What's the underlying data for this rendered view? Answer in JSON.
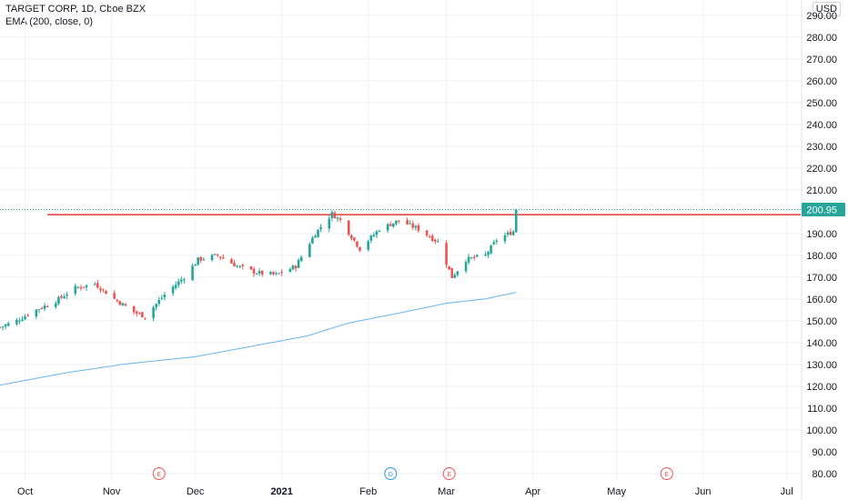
{
  "header": {
    "symbol_line": "TARGET CORP, 1D, Cboe BZX",
    "indicator_line": "EMA (200, close, 0)",
    "currency": "USD"
  },
  "colors": {
    "up": "#26a69a",
    "down": "#ef5350",
    "ema": "#64b5f6",
    "resistance": "#e53935",
    "grid": "#f0f3fa",
    "price_tag": "#26a69a"
  },
  "events": [
    {
      "date": "2020-11-18",
      "label": "E",
      "kind": "earnings"
    },
    {
      "date": "2021-02-09",
      "label": "D",
      "kind": "dividend"
    },
    {
      "date": "2021-03-02",
      "label": "E",
      "kind": "earnings"
    },
    {
      "date": "2021-05-19",
      "label": "E",
      "kind": "earnings"
    }
  ],
  "chart_data": {
    "type": "line",
    "title": "TARGET CORP, 1D, Cboe BZX",
    "subtitle": "EMA (200, close, 0)",
    "price_unit": "USD",
    "last_price_label": "200.95",
    "ylim": [
      77,
      297
    ],
    "xlim": [
      "2020-09-22",
      "2021-07-06"
    ],
    "y_ticks": [
      "80.00",
      "90.00",
      "100.00",
      "110.00",
      "120.00",
      "130.00",
      "140.00",
      "150.00",
      "160.00",
      "170.00",
      "180.00",
      "190.00",
      "200.00",
      "210.00",
      "220.00",
      "230.00",
      "240.00",
      "250.00",
      "260.00",
      "270.00",
      "280.00",
      "290.00"
    ],
    "x_ticks": [
      {
        "date": "2020-10-01",
        "label": "Oct"
      },
      {
        "date": "2020-11-01",
        "label": "Nov"
      },
      {
        "date": "2020-12-01",
        "label": "Dec"
      },
      {
        "date": "2021-01-01",
        "label": "2021",
        "bold": true
      },
      {
        "date": "2021-02-01",
        "label": "Feb"
      },
      {
        "date": "2021-03-01",
        "label": "Mar"
      },
      {
        "date": "2021-04-01",
        "label": "Apr"
      },
      {
        "date": "2021-05-01",
        "label": "May"
      },
      {
        "date": "2021-06-01",
        "label": "Jun"
      },
      {
        "date": "2021-07-01",
        "label": "Jul"
      }
    ],
    "resistance_level": {
      "y": 198.6,
      "from": "2020-10-09",
      "to": "2021-07-06"
    },
    "last_close": 200.95,
    "close_path": [
      [
        "2020-09-22",
        147
      ],
      [
        "2020-09-28",
        150
      ],
      [
        "2020-10-05",
        155
      ],
      [
        "2020-10-12",
        159
      ],
      [
        "2020-10-19",
        165
      ],
      [
        "2020-10-26",
        167
      ],
      [
        "2020-11-02",
        160
      ],
      [
        "2020-11-09",
        154
      ],
      [
        "2020-11-13",
        152
      ],
      [
        "2020-11-20",
        162
      ],
      [
        "2020-11-27",
        170
      ],
      [
        "2020-12-02",
        178
      ],
      [
        "2020-12-09",
        180
      ],
      [
        "2020-12-16",
        175
      ],
      [
        "2020-12-23",
        172
      ],
      [
        "2020-12-30",
        171
      ],
      [
        "2021-01-06",
        175
      ],
      [
        "2021-01-13",
        190
      ],
      [
        "2021-01-19",
        199
      ],
      [
        "2021-01-22",
        196
      ],
      [
        "2021-01-29",
        183
      ],
      [
        "2021-02-05",
        192
      ],
      [
        "2021-02-12",
        196
      ],
      [
        "2021-02-19",
        192
      ],
      [
        "2021-02-26",
        186
      ],
      [
        "2021-03-03",
        170
      ],
      [
        "2021-03-08",
        178
      ],
      [
        "2021-03-15",
        180
      ],
      [
        "2021-03-19",
        187
      ],
      [
        "2021-03-25",
        191
      ],
      [
        "2021-03-26",
        200.95
      ]
    ],
    "series": [
      {
        "name": "EMA (200, close, 0)",
        "points": [
          [
            "2020-09-22",
            120.5
          ],
          [
            "2020-10-15",
            126
          ],
          [
            "2020-11-05",
            130
          ],
          [
            "2020-12-01",
            133.5
          ],
          [
            "2020-12-20",
            138
          ],
          [
            "2021-01-10",
            143
          ],
          [
            "2021-01-25",
            149
          ],
          [
            "2021-02-10",
            153
          ],
          [
            "2021-03-01",
            158
          ],
          [
            "2021-03-15",
            160
          ],
          [
            "2021-03-26",
            163
          ]
        ]
      }
    ]
  }
}
